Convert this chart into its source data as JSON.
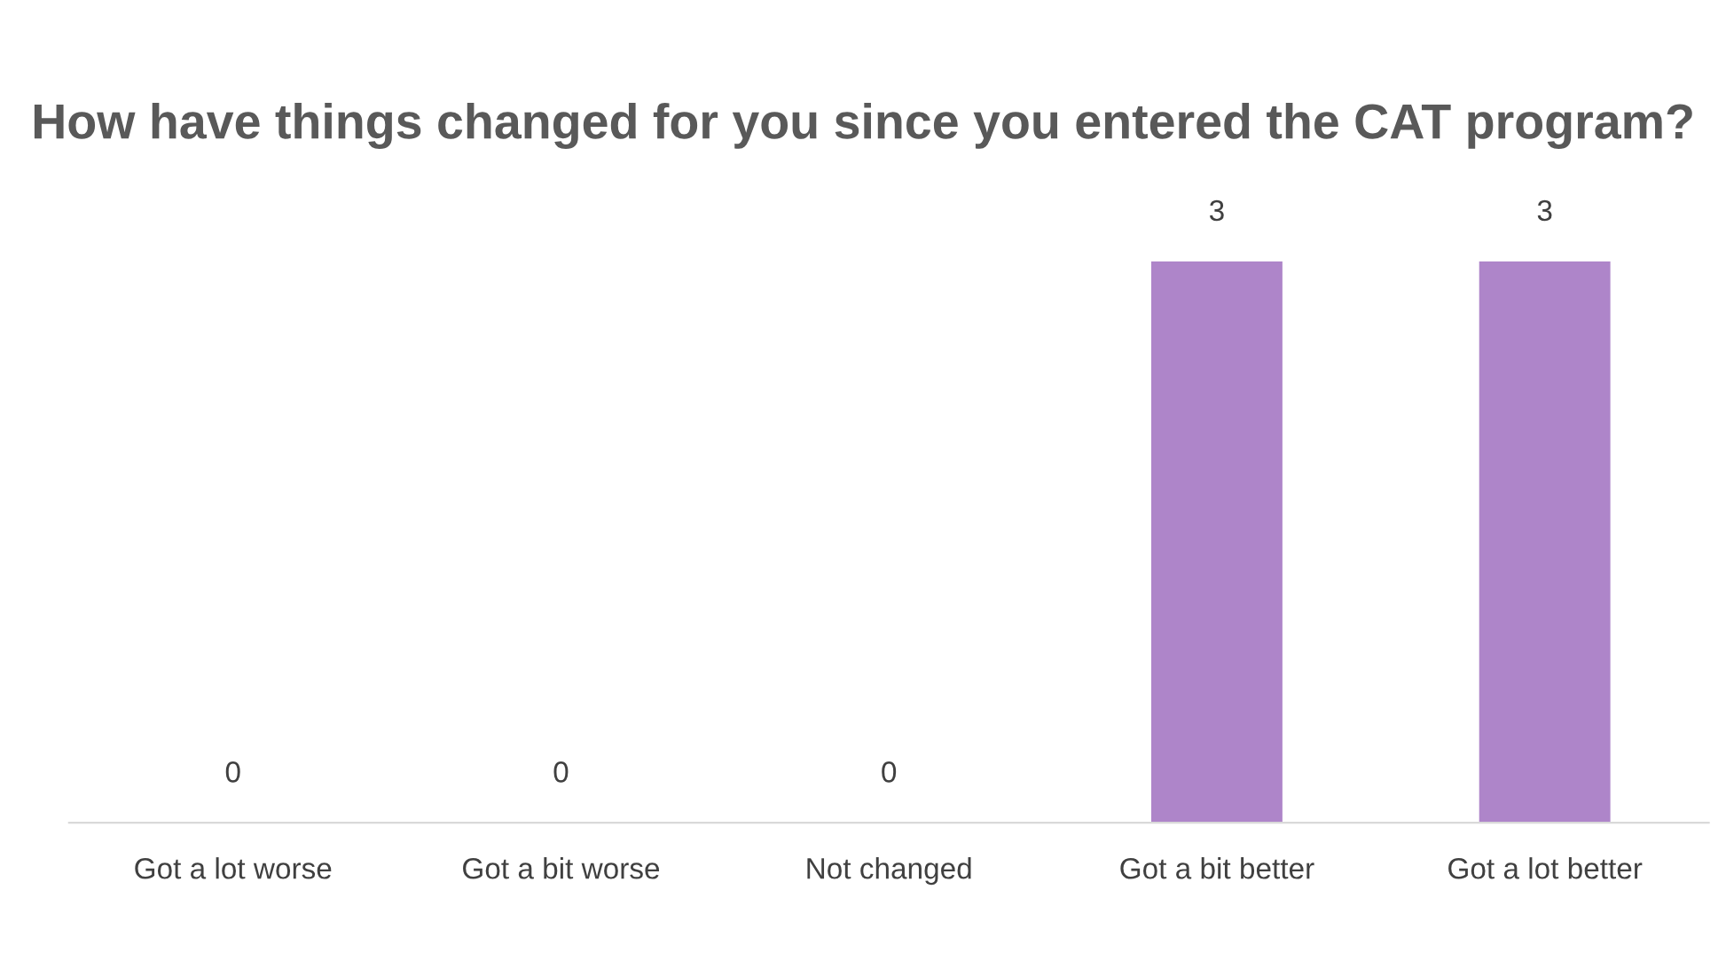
{
  "chart_data": {
    "type": "bar",
    "title": "How have things changed for you since you entered the CAT program?",
    "categories": [
      "Got a lot worse",
      "Got a bit worse",
      "Not changed",
      "Got a bit better",
      "Got a lot better"
    ],
    "values": [
      0,
      0,
      0,
      3,
      3
    ],
    "color": "#ae85c9",
    "data_labels": true,
    "grid": false,
    "legend": false
  }
}
